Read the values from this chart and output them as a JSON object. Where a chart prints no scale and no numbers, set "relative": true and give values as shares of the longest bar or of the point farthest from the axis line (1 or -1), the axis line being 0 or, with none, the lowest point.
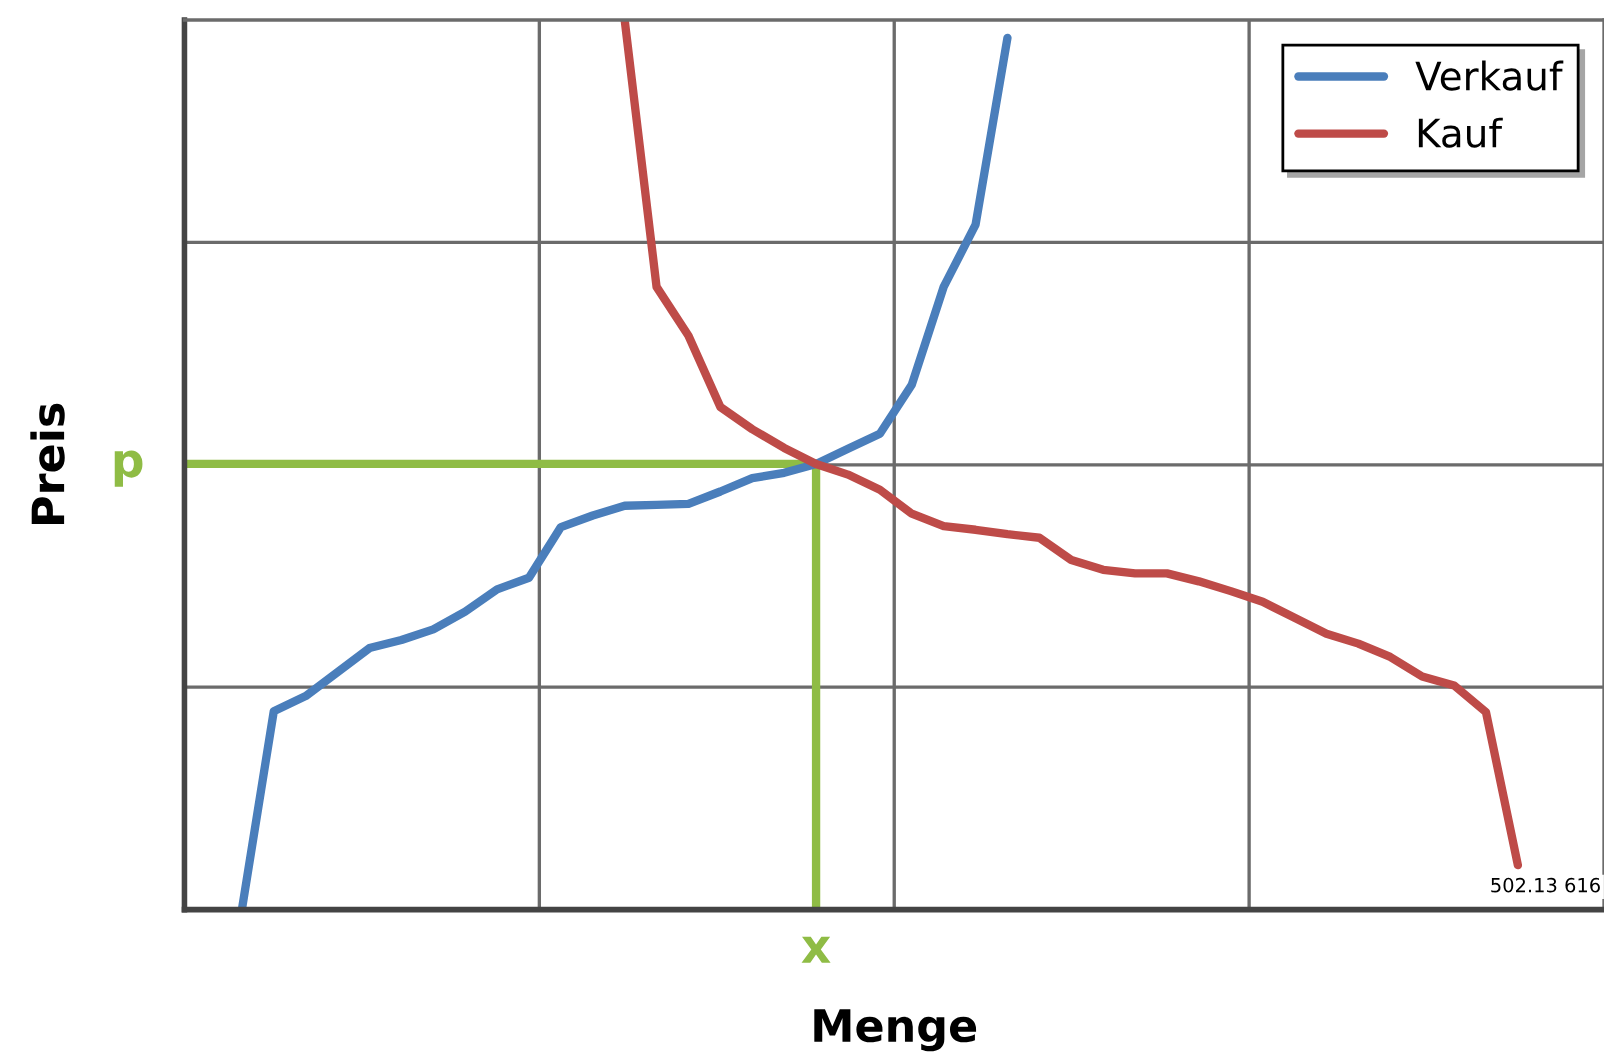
{
  "chart_data": {
    "type": "line",
    "relative": true,
    "xlabel": "Menge",
    "ylabel": "Preis",
    "categories": [
      null,
      null,
      null,
      null,
      null,
      null,
      null,
      null,
      null,
      null,
      null,
      null,
      null,
      null,
      null,
      null,
      null,
      null,
      null,
      null,
      null,
      null,
      null,
      null,
      null,
      null,
      null,
      null,
      null,
      null,
      null,
      null,
      null,
      null,
      null,
      null,
      null,
      null,
      null,
      null,
      null
    ],
    "grid": true,
    "legend": "top right",
    "line_style": "solid",
    "series": [
      {
        "name": "Verkauf",
        "color": "#4a7ebb",
        "values": [
          0,
          0.223,
          0.24,
          0.267,
          0.294,
          0.303,
          0.315,
          0.335,
          0.36,
          0.373,
          0.43,
          0.443,
          0.454,
          0.455,
          0.456,
          0.47,
          0.485,
          0.491,
          0.501,
          0.518,
          0.535,
          0.59,
          0.7,
          0.77,
          0.98,
          null,
          null,
          null,
          null,
          null,
          null,
          null,
          null,
          null,
          null,
          null,
          null,
          null,
          null,
          null,
          null
        ]
      },
      {
        "name": "Kauf",
        "color": "#be4b48",
        "values": [
          null,
          null,
          null,
          null,
          null,
          null,
          null,
          null,
          null,
          null,
          null,
          null,
          1.0,
          0.7,
          0.645,
          0.565,
          0.54,
          0.519,
          0.501,
          0.489,
          0.472,
          0.445,
          0.431,
          0.427,
          0.422,
          0.418,
          0.393,
          0.382,
          0.378,
          0.378,
          0.369,
          0.358,
          0.346,
          0.328,
          0.31,
          0.299,
          0.284,
          0.262,
          0.252,
          0.222,
          0.05
        ]
      }
    ],
    "ref_lines": [
      {
        "axis": "y",
        "value": 0.501,
        "label": "p",
        "color": "#8fbc45"
      }
    ],
    "annotations": [
      "x",
      "502.13 616"
    ]
  }
}
